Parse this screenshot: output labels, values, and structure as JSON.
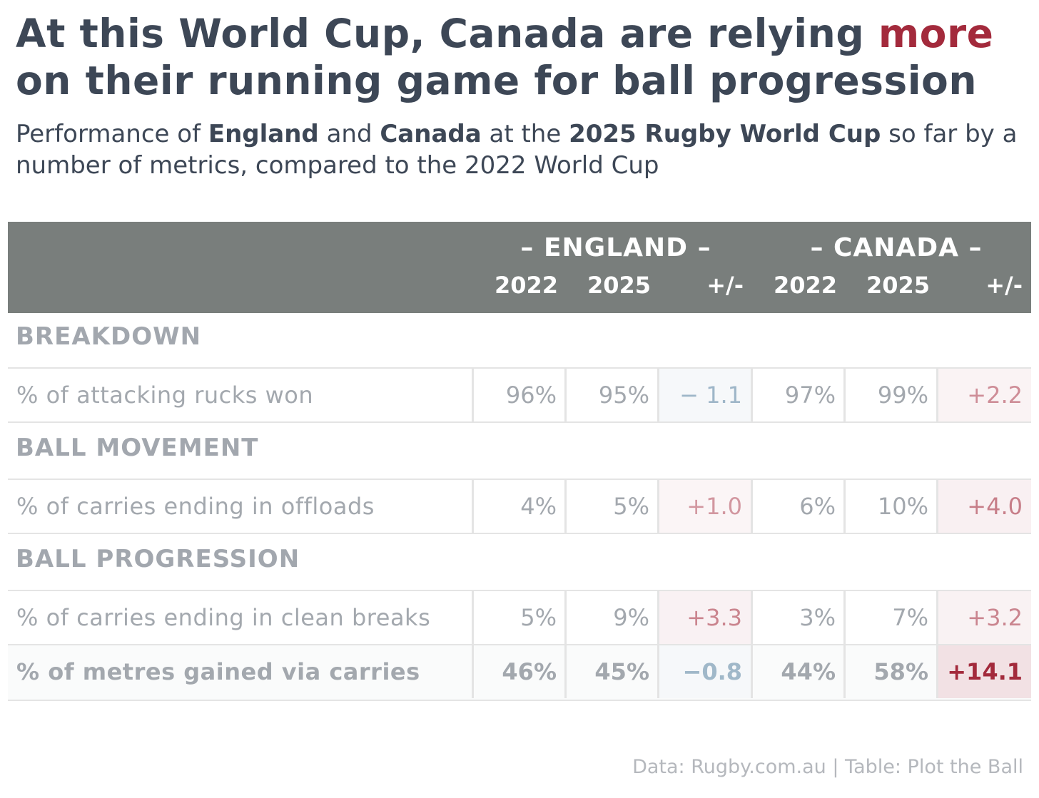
{
  "title": {
    "part1": "At this World Cup, Canada are relying ",
    "highlight": "more",
    "part2": " on their running game for ball progression",
    "highlight_color": "#a32a3c"
  },
  "subtitle": {
    "t1": "Performance of ",
    "b1": "England",
    "t2": " and ",
    "b2": "Canada",
    "t3": " at the ",
    "b3": "2025 Rugby World Cup",
    "t4": " so far by a number of metrics, compared to the 2022 World Cup"
  },
  "chart_data": {
    "type": "table",
    "groups": [
      "– ENGLAND –",
      "– CANADA –"
    ],
    "columns": [
      "2022",
      "2025",
      "+/-",
      "2022",
      "2025",
      "+/-"
    ],
    "sections": [
      {
        "name": "BREAKDOWN",
        "rows": [
          {
            "label": "% of attacking rucks won",
            "bold": false,
            "values": [
              "96%",
              "95%",
              "− 1.1",
              "97%",
              "99%",
              "+2.2"
            ],
            "diffs": [
              -1.1,
              2.2
            ]
          }
        ]
      },
      {
        "name": "BALL MOVEMENT",
        "rows": [
          {
            "label": "% of carries ending in offloads",
            "bold": false,
            "values": [
              "4%",
              "5%",
              "+1.0",
              "6%",
              "10%",
              "+4.0"
            ],
            "diffs": [
              1.0,
              4.0
            ]
          }
        ]
      },
      {
        "name": "BALL PROGRESSION",
        "rows": [
          {
            "label": "% of carries ending in clean breaks",
            "bold": false,
            "values": [
              "5%",
              "9%",
              "+3.3",
              "3%",
              "7%",
              "+3.2"
            ],
            "diffs": [
              3.3,
              3.2
            ]
          },
          {
            "label": "% of metres gained via carries",
            "bold": true,
            "values": [
              "46%",
              "45%",
              "−0.8",
              "44%",
              "58%",
              "+14.1"
            ],
            "diffs": [
              -0.8,
              14.1
            ]
          }
        ]
      }
    ],
    "colors": {
      "positive": "#a32a3c",
      "negative": "#3a6b8f",
      "header_bg": "#797e7c",
      "muted": "#a3a8ae"
    }
  },
  "footer": "Data: Rugby.com.au | Table: Plot the Ball"
}
